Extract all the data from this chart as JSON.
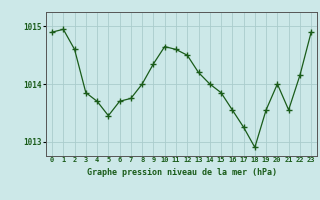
{
  "x": [
    0,
    1,
    2,
    3,
    4,
    5,
    6,
    7,
    8,
    9,
    10,
    11,
    12,
    13,
    14,
    15,
    16,
    17,
    18,
    19,
    20,
    21,
    22,
    23
  ],
  "y": [
    1014.9,
    1014.95,
    1014.6,
    1013.85,
    1013.7,
    1013.45,
    1013.7,
    1013.75,
    1014.0,
    1014.35,
    1014.65,
    1014.6,
    1014.5,
    1014.2,
    1014.0,
    1013.85,
    1013.55,
    1013.25,
    1012.9,
    1013.55,
    1014.0,
    1013.55,
    1014.15,
    1014.9
  ],
  "ylim": [
    1012.75,
    1015.25
  ],
  "yticks": [
    1013,
    1014,
    1015
  ],
  "xticks": [
    0,
    1,
    2,
    3,
    4,
    5,
    6,
    7,
    8,
    9,
    10,
    11,
    12,
    13,
    14,
    15,
    16,
    17,
    18,
    19,
    20,
    21,
    22,
    23
  ],
  "line_color": "#1a5c1a",
  "marker_color": "#1a5c1a",
  "bg_color": "#cce8e8",
  "grid_color": "#aacccc",
  "axis_color": "#555555",
  "xlabel": "Graphe pression niveau de la mer (hPa)",
  "xlabel_color": "#1a5c1a",
  "tick_label_color": "#1a5c1a"
}
